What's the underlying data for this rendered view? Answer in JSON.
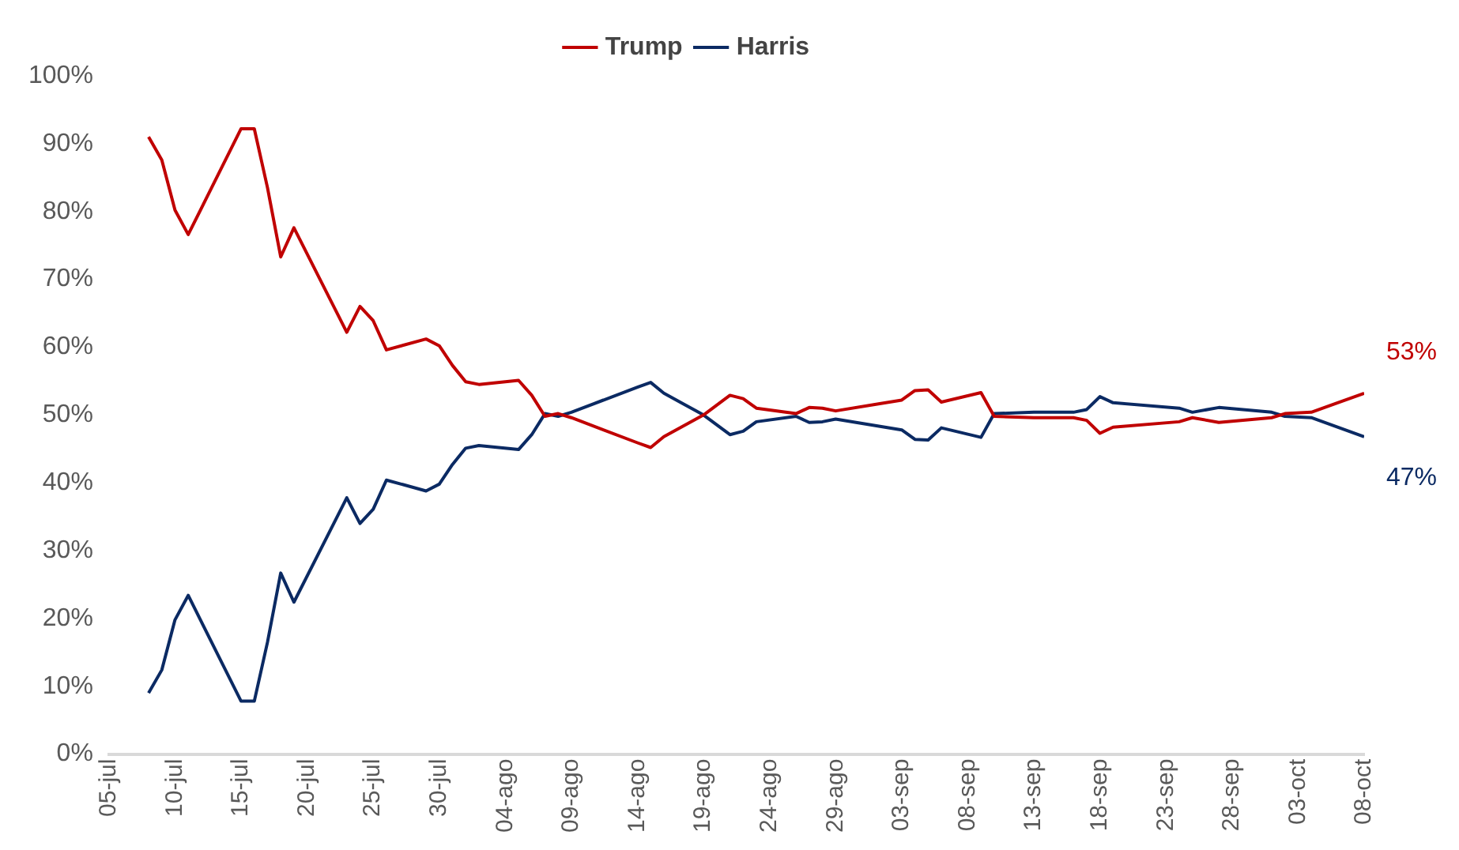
{
  "chart_data": {
    "type": "line",
    "x": [
      "--07-08",
      "--07-09",
      "--07-10",
      "--07-11",
      "--07-15",
      "--07-16",
      "--07-17",
      "--07-18",
      "--07-19",
      "--07-23",
      "--07-24",
      "--07-25",
      "--07-26",
      "--07-29",
      "--07-30",
      "--07-31",
      "--08-01",
      "--08-02",
      "--08-05",
      "--08-06",
      "--08-07",
      "--08-08",
      "--08-09",
      "--08-14",
      "--08-15",
      "--08-16",
      "--08-19",
      "--08-21",
      "--08-22",
      "--08-23",
      "--08-26",
      "--08-27",
      "--08-28",
      "--08-29",
      "--09-03",
      "--09-04",
      "--09-05",
      "--09-06",
      "--09-09",
      "--09-10",
      "--09-13",
      "--09-16",
      "--09-17",
      "--09-18",
      "--09-19",
      "--09-24",
      "--09-25",
      "--09-27",
      "--10-01",
      "--10-02",
      "--10-04",
      "--10-08"
    ],
    "series": [
      {
        "name": "Trump",
        "color": "#c00000",
        "values": [
          91.0,
          87.6,
          80.2,
          76.6,
          92.2,
          92.2,
          83.5,
          73.3,
          77.6,
          62.2,
          66.0,
          63.9,
          59.6,
          61.2,
          60.2,
          57.3,
          54.9,
          54.5,
          55.1,
          52.9,
          49.8,
          50.2,
          49.6,
          45.9,
          45.2,
          46.8,
          50.0,
          52.9,
          52.4,
          51.0,
          50.2,
          51.1,
          51.0,
          50.6,
          52.2,
          53.6,
          53.7,
          51.9,
          53.3,
          49.8,
          49.6,
          49.6,
          49.2,
          47.3,
          48.2,
          49.0,
          49.6,
          48.9,
          49.6,
          50.2,
          50.4,
          53.2
        ],
        "value_labels": [
          null,
          null,
          null,
          null,
          null,
          null,
          null,
          null,
          null,
          null,
          null,
          null,
          null,
          null,
          null,
          null,
          null,
          null,
          null,
          null,
          null,
          null,
          null,
          null,
          null,
          null,
          null,
          null,
          null,
          null,
          null,
          null,
          null,
          null,
          null,
          null,
          null,
          null,
          null,
          null,
          null,
          null,
          null,
          null,
          null,
          null,
          null,
          null,
          null,
          null,
          null,
          "53%"
        ]
      },
      {
        "name": "Harris",
        "color": "#0b2a63",
        "values": [
          9.0,
          12.4,
          19.8,
          23.4,
          7.8,
          7.8,
          16.5,
          26.7,
          22.4,
          37.8,
          34.0,
          36.1,
          40.4,
          38.8,
          39.8,
          42.7,
          45.1,
          45.5,
          44.9,
          47.1,
          50.2,
          49.8,
          50.4,
          54.1,
          54.8,
          53.2,
          50.0,
          47.1,
          47.6,
          49.0,
          49.8,
          48.9,
          49.0,
          49.4,
          47.8,
          46.4,
          46.3,
          48.1,
          46.7,
          50.2,
          50.4,
          50.4,
          50.8,
          52.7,
          51.8,
          51.0,
          50.4,
          51.1,
          50.4,
          49.8,
          49.6,
          46.8
        ],
        "value_labels": [
          null,
          null,
          null,
          null,
          null,
          null,
          null,
          null,
          null,
          null,
          null,
          null,
          null,
          null,
          null,
          null,
          null,
          null,
          null,
          null,
          null,
          null,
          null,
          null,
          null,
          null,
          null,
          null,
          null,
          null,
          null,
          null,
          null,
          null,
          null,
          null,
          null,
          null,
          null,
          null,
          null,
          null,
          null,
          null,
          null,
          null,
          null,
          null,
          null,
          null,
          null,
          "47%"
        ]
      }
    ],
    "xlim": [
      "--07-05",
      "--10-08"
    ],
    "xticks": [
      {
        "value": "--07-05",
        "label": "05-jul"
      },
      {
        "value": "--07-10",
        "label": "10-jul"
      },
      {
        "value": "--07-15",
        "label": "15-jul"
      },
      {
        "value": "--07-20",
        "label": "20-jul"
      },
      {
        "value": "--07-25",
        "label": "25-jul"
      },
      {
        "value": "--07-30",
        "label": "30-jul"
      },
      {
        "value": "--08-04",
        "label": "04-ago"
      },
      {
        "value": "--08-09",
        "label": "09-ago"
      },
      {
        "value": "--08-14",
        "label": "14-ago"
      },
      {
        "value": "--08-19",
        "label": "19-ago"
      },
      {
        "value": "--08-24",
        "label": "24-ago"
      },
      {
        "value": "--08-29",
        "label": "29-ago"
      },
      {
        "value": "--09-03",
        "label": "03-sep"
      },
      {
        "value": "--09-08",
        "label": "08-sep"
      },
      {
        "value": "--09-13",
        "label": "13-sep"
      },
      {
        "value": "--09-18",
        "label": "18-sep"
      },
      {
        "value": "--09-23",
        "label": "23-sep"
      },
      {
        "value": "--09-28",
        "label": "28-sep"
      },
      {
        "value": "--10-03",
        "label": "03-oct"
      },
      {
        "value": "--10-08",
        "label": "08-oct"
      }
    ],
    "ylim": [
      0,
      100
    ],
    "yticks": [
      {
        "value": 0,
        "label": "0%"
      },
      {
        "value": 10,
        "label": "10%"
      },
      {
        "value": 20,
        "label": "20%"
      },
      {
        "value": 30,
        "label": "30%"
      },
      {
        "value": 40,
        "label": "40%"
      },
      {
        "value": 50,
        "label": "50%"
      },
      {
        "value": 60,
        "label": "60%"
      },
      {
        "value": 70,
        "label": "70%"
      },
      {
        "value": 80,
        "label": "80%"
      },
      {
        "value": 90,
        "label": "90%"
      },
      {
        "value": 100,
        "label": "100%"
      }
    ],
    "legend": "top",
    "grid": false,
    "marker": "none",
    "line_style": "solid"
  }
}
